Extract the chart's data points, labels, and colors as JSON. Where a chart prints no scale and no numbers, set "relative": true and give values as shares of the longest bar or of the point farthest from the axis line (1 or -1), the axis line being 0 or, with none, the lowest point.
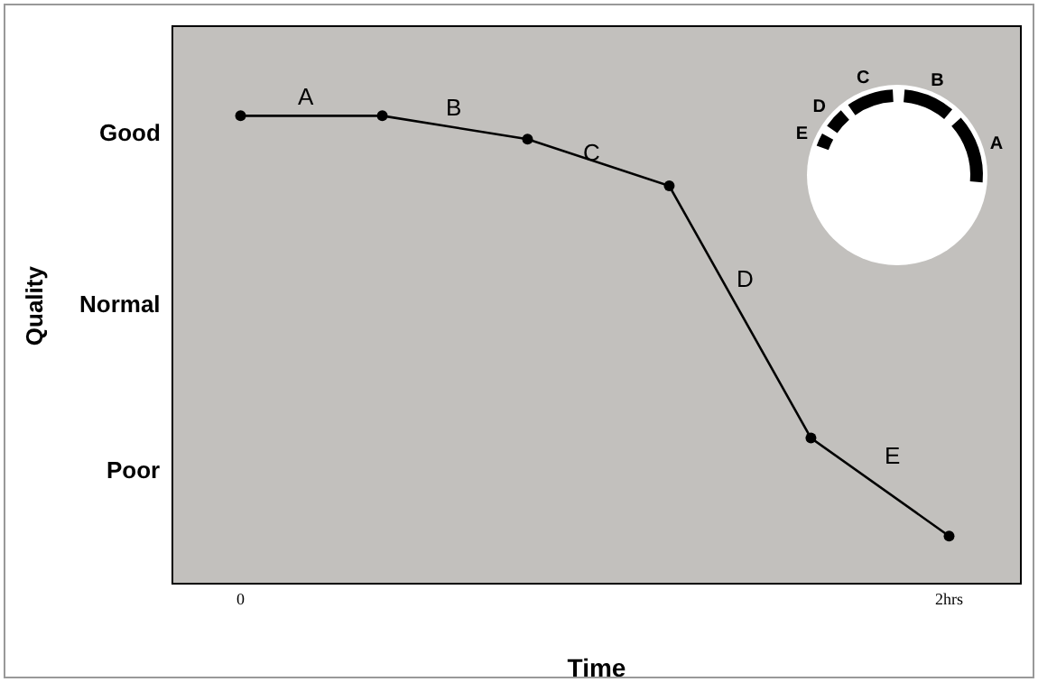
{
  "chart_data": {
    "type": "line",
    "xlabel": "Time",
    "relative": true,
    "x": [
      0,
      0.4,
      0.81,
      1.21,
      1.61,
      2
    ],
    "values": [
      1,
      1,
      0.95,
      0.85,
      0.31,
      0.1
    ],
    "color": "#000000",
    "marker": "circle",
    "line_style": "solid",
    "grid": false,
    "xlim": [
      -0.19,
      2.2
    ],
    "xticks": [
      0,
      {
        "value": 2,
        "label": "2hrs"
      }
    ],
    "annotations": [
      "Good",
      "Normal",
      "Poor",
      "A",
      "B",
      "C",
      "D",
      "E",
      "Quality"
    ]
  }
}
